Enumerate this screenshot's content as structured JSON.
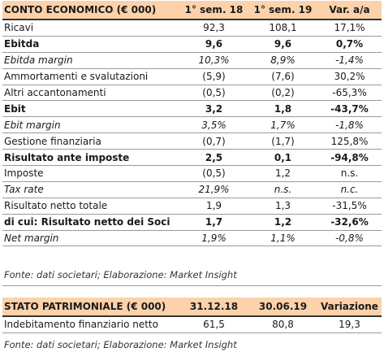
{
  "income": {
    "headers": [
      "CONTO ECONOMICO (€ 000)",
      "1° sem. 18",
      "1° sem. 19",
      "Var. a/a"
    ],
    "rows": [
      {
        "label": "Ricavi",
        "v1": "92,3",
        "v2": "108,1",
        "v3": "17,1%"
      },
      {
        "label": "Ebitda",
        "v1": "9,6",
        "v2": "9,6",
        "v3": "0,7%"
      },
      {
        "label": "Ebitda margin",
        "v1": "10,3%",
        "v2": "8,9%",
        "v3": "-1,4%"
      },
      {
        "label": "Ammortamenti e svalutazioni",
        "v1": "(5,9)",
        "v2": "(7,6)",
        "v3": "30,2%"
      },
      {
        "label": "Altri accantonamenti",
        "v1": "(0,5)",
        "v2": "(0,2)",
        "v3": "-65,3%"
      },
      {
        "label": "Ebit",
        "v1": "3,2",
        "v2": "1,8",
        "v3": "-43,7%"
      },
      {
        "label": "Ebit margin",
        "v1": "3,5%",
        "v2": "1,7%",
        "v3": "-1,8%"
      },
      {
        "label": "Gestione finanziaria",
        "v1": "(0,7)",
        "v2": "(1,7)",
        "v3": "125,8%"
      },
      {
        "label": "Risultato ante imposte",
        "v1": "2,5",
        "v2": "0,1",
        "v3": "-94,8%"
      },
      {
        "label": "Imposte",
        "v1": "(0,5)",
        "v2": "1,2",
        "v3": "n.s."
      },
      {
        "label": "Tax rate",
        "v1": "21,9%",
        "v2": "n.s.",
        "v3": "n.c."
      },
      {
        "label": "Risultato netto totale",
        "v1": "1,9",
        "v2": "1,3",
        "v3": "-31,5%"
      },
      {
        "label": "di cui: Risultato netto dei Soci",
        "v1": "1,7",
        "v2": "1,2",
        "v3": "-32,6%"
      },
      {
        "label": "Net margin",
        "v1": "1,9%",
        "v2": "1,1%",
        "v3": "-0,8%"
      }
    ],
    "source": "Fonte: dati societari; Elaborazione: Market Insight"
  },
  "balance": {
    "headers": [
      "STATO PATRIMONIALE (€ 000)",
      "31.12.18",
      "30.06.19",
      "Variazione"
    ],
    "rows": [
      {
        "label": "Indebitamento finanziario netto",
        "v1": "61,5",
        "v2": "80,8",
        "v3": "19,3"
      }
    ],
    "source": "Fonte: dati societari; Elaborazione: Market Insight"
  },
  "colors": {
    "header_bg": "#fdd2ab",
    "text": "#1a1a1a",
    "rule": "#9a9a9a"
  }
}
